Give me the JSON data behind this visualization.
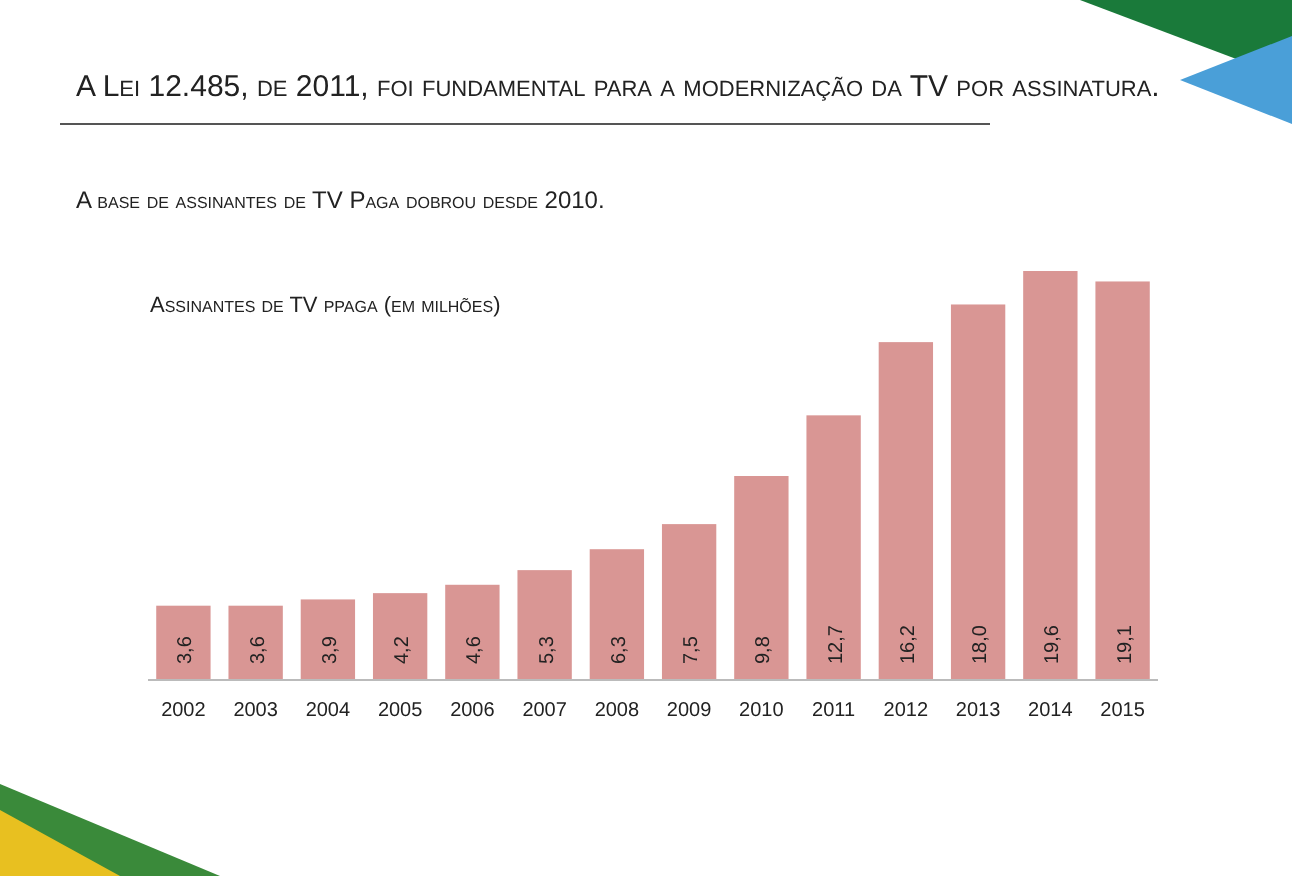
{
  "chart_data": {
    "type": "bar",
    "title": "A Lei 12.485, de 2011, foi fundamental para a modernização da TV por assinatura.",
    "subtitle": "A base de assinantes de TV Paga dobrou desde 2010.",
    "ylabel": "Assinantes de TV ppaga (em milhões)",
    "categories": [
      "2002",
      "2003",
      "2004",
      "2005",
      "2006",
      "2007",
      "2008",
      "2009",
      "2010",
      "2011",
      "2012",
      "2013",
      "2014",
      "2015"
    ],
    "values": [
      3.6,
      3.6,
      3.9,
      4.2,
      4.6,
      5.3,
      6.3,
      7.5,
      9.8,
      12.7,
      16.2,
      18.0,
      19.6,
      19.1
    ],
    "value_labels": [
      "3,6",
      "3,6",
      "3,9",
      "4,2",
      "4,6",
      "5,3",
      "6,3",
      "7,5",
      "9,8",
      "12,7",
      "16,2",
      "18,0",
      "19,6",
      "19,1"
    ],
    "color": "#d99694"
  }
}
